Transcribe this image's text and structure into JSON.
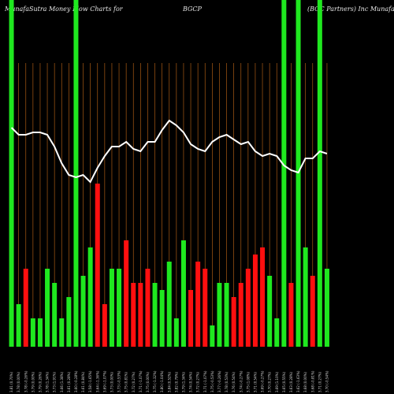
{
  "header": {
    "left": "MunafaSutra  Money Flow  Charts for",
    "center": "BGCP",
    "right": "(BGC Partners)  Inc  MunafaSutra.com"
  },
  "colors": {
    "background": "#000000",
    "up": "#1fe81f",
    "down": "#ff0f0f",
    "gridline": "#a85a14",
    "price_line": "#ffffff"
  },
  "chart_data": {
    "type": "bar",
    "title": "",
    "xlabel": "",
    "ylabel": "",
    "grid": true,
    "categories": [
      "3.81 (0.70%)",
      "3.78 (0.00%)",
      "3.78 (-0.26%)",
      "3.79 (0.00%)",
      "3.79 (0.26%)",
      "3.78 (1.34%)",
      "3.73 (1.91%)",
      "3.66 (1.38%)",
      "3.61 (0.28%)",
      "3.60 (-0.28%)",
      "3.61 (0.84%)",
      "3.58 (-1.65%)",
      "3.64 (-1.36%)",
      "3.69 (-1.07%)",
      "3.73 (0.00%)",
      "3.73 (-0.53%)",
      "3.75 (0.81%)",
      "3.72 (0.27%)",
      "3.71 (-1.07%)",
      "3.75 (0.00%)",
      "3.75 (-1.32%)",
      "3.80 (-1.04%)",
      "3.84 (0.52%)",
      "3.82 (0.79%)",
      "3.79 (1.34%)",
      "3.74 (0.54%)",
      "3.72 (0.27%)",
      "3.71 (-1.07%)",
      "3.75 (-0.53%)",
      "3.77 (-0.26%)",
      "3.78 (0.53%)",
      "3.76 (0.54%)",
      "3.74 (-0.27%)",
      "3.75 (1.08%)",
      "3.71 (0.54%)",
      "3.69 (-0.27%)",
      "3.70 (0.27%)",
      "3.69 (1.10%)",
      "3.65 (0.55%)",
      "3.63 (0.28%)",
      "3.62 (-1.63%)",
      "3.68 (0.00%)",
      "3.68 (-0.81%)",
      "3.71 (0.27%)",
      "3.70 (-0.54%)"
    ],
    "series": [
      {
        "values": [
          1000,
          6,
          11,
          4,
          4,
          11,
          9,
          4,
          7,
          1000,
          10,
          14,
          23,
          6,
          11,
          11,
          15,
          9,
          9,
          11,
          9,
          8,
          12,
          4,
          15,
          8,
          12,
          11,
          3,
          9,
          9,
          7,
          9,
          11,
          13,
          14,
          10,
          4,
          1000,
          9,
          1000,
          14,
          10,
          1000,
          11
        ],
        "directions": [
          "up",
          "up",
          "down",
          "up",
          "up",
          "up",
          "up",
          "up",
          "up",
          "up",
          "up",
          "up",
          "down",
          "down",
          "up",
          "up",
          "down",
          "down",
          "down",
          "down",
          "up",
          "up",
          "up",
          "up",
          "up",
          "down",
          "down",
          "down",
          "up",
          "up",
          "up",
          "down",
          "down",
          "down",
          "down",
          "down",
          "up",
          "up",
          "up",
          "down",
          "up",
          "up",
          "down",
          "up",
          "up"
        ]
      }
    ]
  }
}
